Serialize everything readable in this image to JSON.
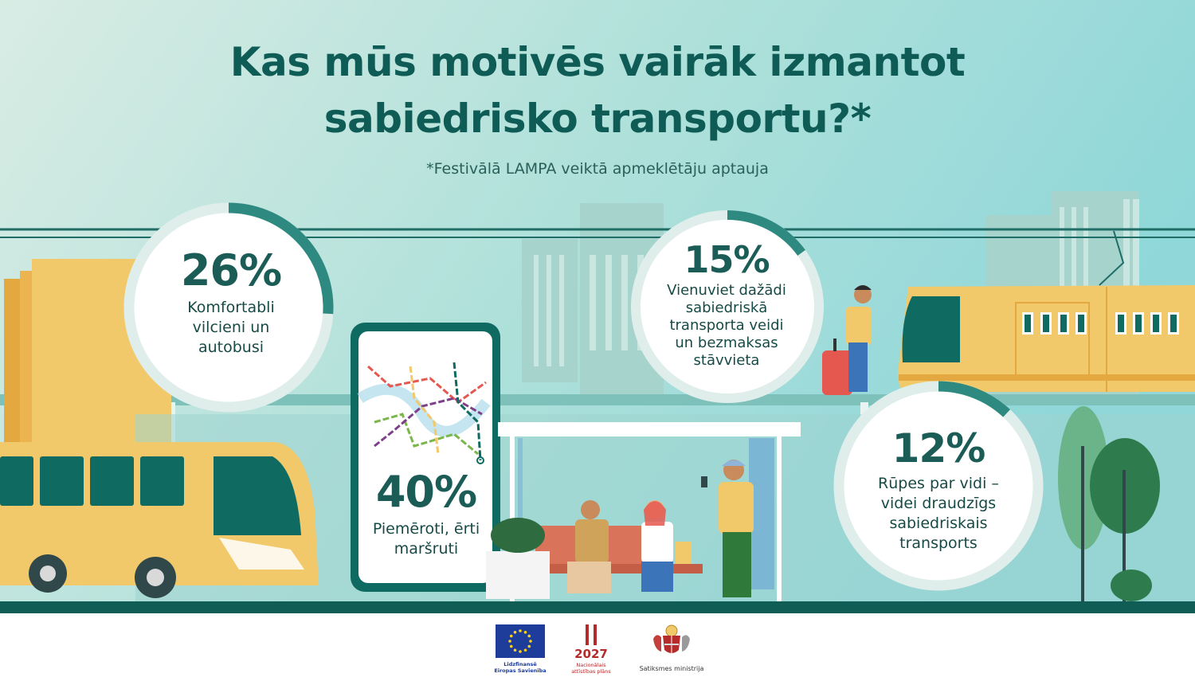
{
  "header": {
    "title_line1": "Kas mūs motivēs vairāk izmantot",
    "title_line2": "sabiedrisko transportu?*",
    "subtitle": "*Festivālā LAMPA veiktā apmeklētāju aptauja"
  },
  "stats": [
    {
      "value": 26,
      "value_text": "26%",
      "lines": [
        "Komfortabli",
        "vilcieni un",
        "autobusi"
      ]
    },
    {
      "value": 40,
      "value_text": "40%",
      "lines": [
        "Piemēroti, ērti",
        "maršruti"
      ]
    },
    {
      "value": 15,
      "value_text": "15%",
      "lines": [
        "Vienuviet dažādi",
        "sabiedriskā",
        "transporta veidi",
        "un bezmaksas",
        "stāvvieta"
      ]
    },
    {
      "value": 12,
      "value_text": "12%",
      "lines": [
        "Rūpes par vidi –",
        "videi draudzīgs",
        "sabiedriskais",
        "transports"
      ]
    }
  ],
  "footer": {
    "eu_label_line1": "Līdzfinansē",
    "eu_label_line2": "Eiropas Savienība",
    "plan_year": "2027",
    "plan_label_line1": "Nacionālais",
    "plan_label_line2": "attīstības plāns",
    "ministry_label": "Satiksmes ministrija"
  },
  "colors": {
    "title": "#0f5c56",
    "ring_track": "#dfeeea",
    "ring_fill": "#2e8a80",
    "yellow": "#f2c96a",
    "dark_teal": "#0f6a61",
    "ground": "#0f5d55"
  },
  "icons": [
    "bus-icon",
    "tram-icon",
    "smartphone-map-icon",
    "bus-stop-icon",
    "tree-icon",
    "eu-flag-icon",
    "latvia-coat-of-arms-icon"
  ]
}
